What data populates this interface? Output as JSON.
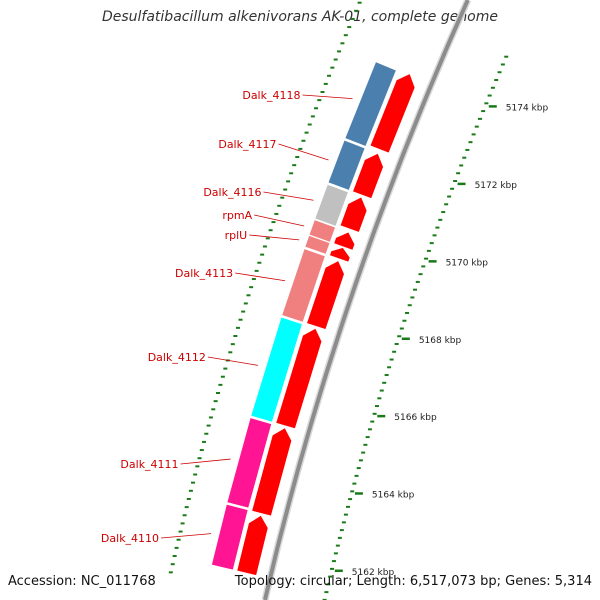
{
  "title": "Desulfatibacillum alkenivorans AK-01, complete genome",
  "footer": {
    "accession": "Accession: NC_011768",
    "summary": "Topology: circular; Length: 6,517,073 bp; Genes: 5,314"
  },
  "colors": {
    "backbone": "#8c8c8c",
    "cds_arrow": "#ff0000",
    "tick": "#1a7a1a",
    "gene_label": "#cc0000"
  },
  "scale": {
    "unit": "kbp",
    "ticks": [
      {
        "kbp": 5174,
        "label": "5174 kbp"
      },
      {
        "kbp": 5172,
        "label": "5172 kbp"
      },
      {
        "kbp": 5170,
        "label": "5170 kbp"
      },
      {
        "kbp": 5168,
        "label": "5168 kbp"
      },
      {
        "kbp": 5166,
        "label": "5166 kbp"
      },
      {
        "kbp": 5164,
        "label": "5164 kbp"
      },
      {
        "kbp": 5162,
        "label": "5162 kbp"
      }
    ]
  },
  "genes": [
    {
      "name": "Dalk_4118",
      "color": "#4b7fae",
      "start_kbp": 5172.0,
      "end_kbp": 5173.9,
      "cds_start_kbp": 5172.05,
      "cds_end_kbp": 5173.95
    },
    {
      "name": "Dalk_4117",
      "color": "#4b7fae",
      "start_kbp": 5170.9,
      "end_kbp": 5171.95,
      "cds_start_kbp": 5170.9,
      "cds_end_kbp": 5171.95
    },
    {
      "name": "Dalk_4116",
      "color": "#c0c0c0",
      "start_kbp": 5170.0,
      "end_kbp": 5170.85,
      "cds_start_kbp": 5170.05,
      "cds_end_kbp": 5170.85
    },
    {
      "name": "rpmA",
      "color": "#f08080",
      "start_kbp": 5169.6,
      "end_kbp": 5169.97,
      "cds_start_kbp": 5169.6,
      "cds_end_kbp": 5169.97
    },
    {
      "name": "rplU",
      "color": "#f08080",
      "start_kbp": 5169.3,
      "end_kbp": 5169.58,
      "cds_start_kbp": 5169.3,
      "cds_end_kbp": 5169.58
    },
    {
      "name": "Dalk_4113",
      "color": "#f08080",
      "start_kbp": 5167.6,
      "end_kbp": 5169.25,
      "cds_start_kbp": 5167.6,
      "cds_end_kbp": 5169.25
    },
    {
      "name": "Dalk_4112",
      "color": "#00ffff",
      "start_kbp": 5165.1,
      "end_kbp": 5167.55,
      "cds_start_kbp": 5165.1,
      "cds_end_kbp": 5167.55
    },
    {
      "name": "Dalk_4111",
      "color": "#ff1493",
      "start_kbp": 5162.95,
      "end_kbp": 5165.05,
      "cds_start_kbp": 5162.9,
      "cds_end_kbp": 5165.05
    },
    {
      "name": "Dalk_4110",
      "color": "#ff1493",
      "start_kbp": 5161.4,
      "end_kbp": 5162.9,
      "cds_start_kbp": 5161.4,
      "cds_end_kbp": 5162.85
    }
  ]
}
